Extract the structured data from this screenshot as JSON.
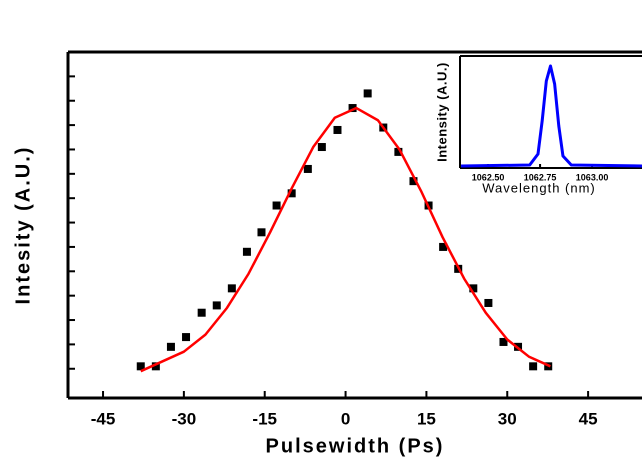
{
  "chart_data": [
    {
      "type": "scatter",
      "xlabel": "Pulsewidth (Ps)",
      "ylabel": "Intesity (A.U.)",
      "xlim": [
        -51.5,
        55
      ],
      "xticks": [
        -45,
        -30,
        -15,
        0,
        15,
        30,
        45
      ],
      "ylim": [
        -0.12,
        1.3
      ],
      "yticks": [
        0,
        0.1,
        0.2,
        0.3,
        0.4,
        0.5,
        0.6,
        0.7,
        0.8,
        0.9,
        1.0,
        1.1,
        1.2
      ],
      "series": [
        {
          "type": "scatter",
          "color": "#000000",
          "x": [
            -38,
            -35.2,
            -32.4,
            -29.6,
            -26.7,
            -23.9,
            -21.1,
            -18.3,
            -15.6,
            -12.8,
            -10,
            -7,
            -4.4,
            -1.5,
            1.3,
            4.1,
            7,
            9.8,
            12.6,
            15.4,
            18.1,
            20.9,
            23.7,
            26.5,
            29.3,
            32,
            34.8,
            37.6
          ],
          "values": [
            0.01,
            0.01,
            0.09,
            0.13,
            0.23,
            0.26,
            0.33,
            0.48,
            0.56,
            0.67,
            0.72,
            0.82,
            0.91,
            0.98,
            1.07,
            1.13,
            0.99,
            0.89,
            0.77,
            0.67,
            0.5,
            0.41,
            0.33,
            0.27,
            0.11,
            0.09,
            0.01,
            0.01
          ]
        },
        {
          "type": "line",
          "color": "#ff0000",
          "x": [
            -38,
            -34,
            -30,
            -26,
            -22,
            -18,
            -14,
            -10,
            -6,
            -2,
            2,
            6,
            10,
            14,
            18,
            22,
            26,
            30,
            34,
            38
          ],
          "values": [
            -0.01,
            0.03,
            0.07,
            0.14,
            0.25,
            0.39,
            0.56,
            0.74,
            0.91,
            1.03,
            1.07,
            1.02,
            0.9,
            0.73,
            0.54,
            0.37,
            0.23,
            0.12,
            0.05,
            0.01
          ]
        }
      ]
    },
    {
      "type": "line",
      "xlabel": "Wavelength (nm)",
      "ylabel": "Intensity (A.U.)",
      "xlim": [
        1062.365,
        1063.24
      ],
      "xticks": [
        {
          "value": 1062.5,
          "label": "1062.50"
        },
        1062.75,
        {
          "value": 1063,
          "label": "1063.00"
        }
      ],
      "ylim": [
        -0.02,
        1.1
      ],
      "series": [
        {
          "type": "line",
          "color": "#0000ff",
          "x": [
            1062.37,
            1062.7,
            1062.74,
            1062.76,
            1062.78,
            1062.8,
            1062.82,
            1062.84,
            1062.86,
            1062.9,
            1063.24
          ],
          "values": [
            0,
            0.01,
            0.12,
            0.45,
            0.85,
            1.0,
            0.82,
            0.4,
            0.1,
            0.01,
            0
          ]
        }
      ]
    }
  ]
}
